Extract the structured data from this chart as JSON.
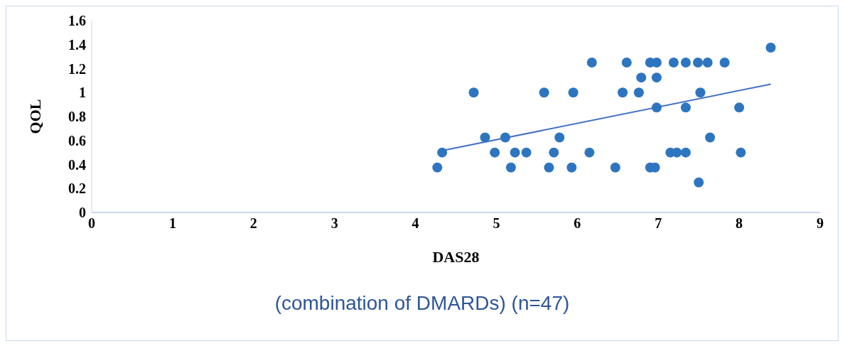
{
  "chart_data": {
    "type": "scatter",
    "xlabel": "DAS28",
    "ylabel": "QOL",
    "annotations": [
      "(combination of DMARDs) (n=47)"
    ],
    "xlim": [
      0,
      9
    ],
    "xticks": [
      0,
      1,
      2,
      3,
      4,
      5,
      6,
      7,
      8,
      9
    ],
    "ylim": [
      0,
      1.6
    ],
    "yticks": [
      0,
      0.2,
      0.4,
      0.6,
      0.8,
      1,
      1.2,
      1.4,
      1.6
    ],
    "marker": "circle",
    "series": [
      {
        "color": "#2e75c0",
        "x": [
          4.72,
          5.59,
          4.86,
          5.11,
          4.33,
          4.27,
          4.98,
          5.23,
          5.37,
          5.71,
          5.18,
          5.65,
          5.78,
          8.39,
          6.18,
          6.61,
          6.9,
          6.98,
          7.19,
          7.34,
          7.49,
          7.61,
          7.82,
          6.79,
          6.98,
          5.95,
          6.56,
          6.76,
          7.52,
          6.98,
          7.34,
          8.0,
          7.64,
          6.15,
          7.15,
          7.23,
          7.34,
          8.02,
          5.93,
          6.47,
          6.9,
          6.96,
          7.5
        ],
        "values": [
          1,
          1,
          0.625,
          0.625,
          0.5,
          0.375,
          0.5,
          0.5,
          0.5,
          0.5,
          0.375,
          0.375,
          0.625,
          1.375,
          1.25,
          1.25,
          1.25,
          1.25,
          1.25,
          1.25,
          1.25,
          1.25,
          1.25,
          1.125,
          1.125,
          1,
          1,
          1,
          1,
          0.875,
          0.875,
          0.875,
          0.625,
          0.5,
          0.5,
          0.5,
          0.5,
          0.5,
          0.375,
          0.375,
          0.375,
          0.375,
          0.25
        ]
      },
      {
        "type": "line",
        "color": "#4472c4",
        "marker": "none",
        "x": [
          4.33,
          8.39
        ],
        "values": [
          0.515,
          1.07
        ]
      }
    ]
  }
}
